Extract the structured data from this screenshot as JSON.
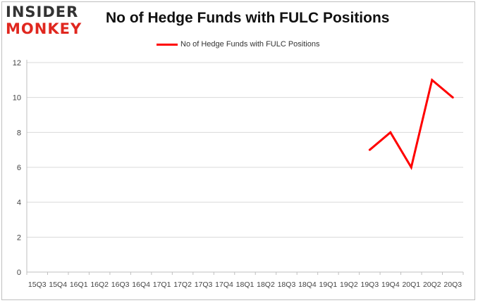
{
  "logo": {
    "line1": "INSIDER",
    "line2": "MONKEY"
  },
  "chart_data": {
    "type": "line",
    "title": "No of Hedge Funds with FULC Positions",
    "xlabel": "",
    "ylabel": "",
    "categories": [
      "15Q3",
      "15Q4",
      "16Q1",
      "16Q2",
      "16Q3",
      "16Q4",
      "17Q1",
      "17Q2",
      "17Q3",
      "17Q4",
      "18Q1",
      "18Q2",
      "18Q3",
      "18Q4",
      "19Q1",
      "19Q2",
      "19Q3",
      "19Q4",
      "20Q1",
      "20Q2",
      "20Q3"
    ],
    "series": [
      {
        "name": "No of Hedge Funds with FULC Positions",
        "values": [
          null,
          null,
          null,
          null,
          null,
          null,
          null,
          null,
          null,
          null,
          null,
          null,
          null,
          null,
          null,
          null,
          7,
          8,
          6,
          11,
          10
        ]
      }
    ],
    "ylim": [
      0,
      12
    ],
    "yticks": [
      0,
      2,
      4,
      6,
      8,
      10,
      12
    ],
    "grid": true,
    "legend": "top-center",
    "colors": {
      "line": "#ff0000",
      "grid": "#d9d9d9",
      "axis": "#bfbfbf",
      "text": "#444444"
    }
  }
}
